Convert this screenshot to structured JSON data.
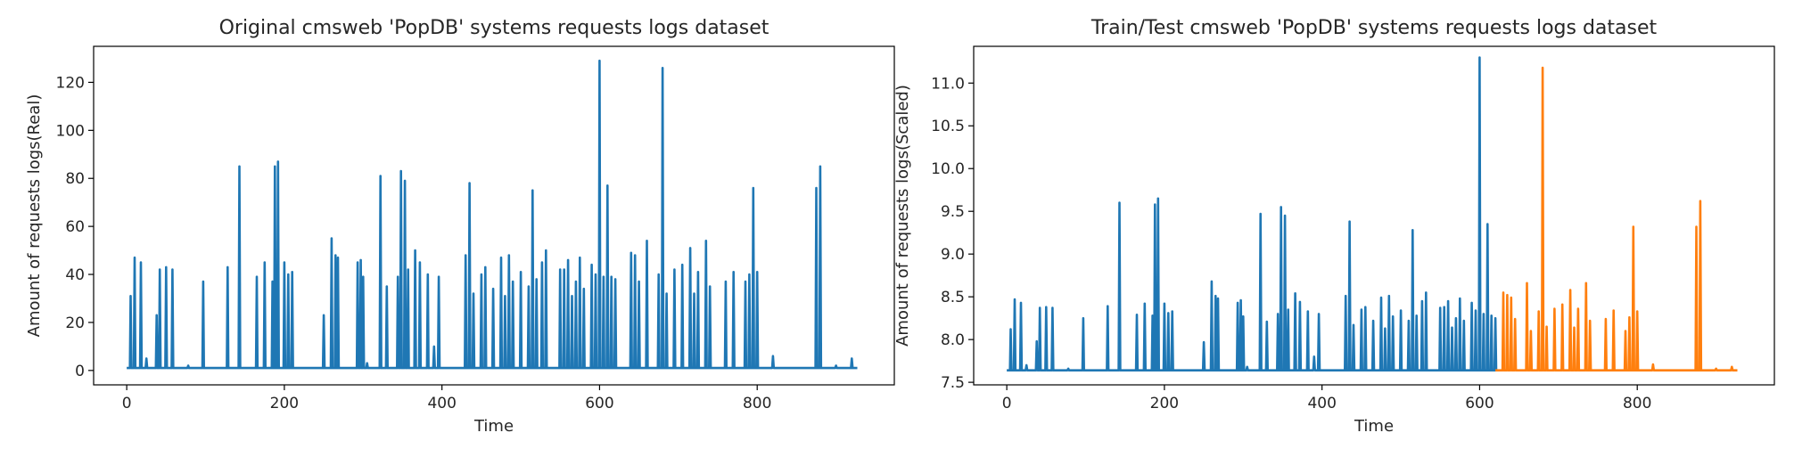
{
  "chart_data": [
    {
      "type": "line",
      "title": "Original cmsweb 'PopDB' systems requests logs dataset",
      "xlabel": "Time",
      "ylabel": "Amount of requests logs(Real)",
      "xlim": [
        -42,
        974
      ],
      "ylim": [
        -6,
        135
      ],
      "xticks": [
        0,
        200,
        400,
        600,
        800
      ],
      "yticks": [
        0,
        20,
        40,
        60,
        80,
        100,
        120
      ],
      "xtick_labels": [
        "0",
        "200",
        "400",
        "600",
        "800"
      ],
      "ytick_labels": [
        "0",
        "20",
        "40",
        "60",
        "80",
        "100",
        "120"
      ],
      "grid": false,
      "series": [
        {
          "color": "#1f77b4",
          "baseline": 1,
          "xmax": 927,
          "spikes": [
            [
              5,
              31
            ],
            [
              10,
              47
            ],
            [
              18,
              45
            ],
            [
              25,
              5
            ],
            [
              38,
              23
            ],
            [
              42,
              42
            ],
            [
              50,
              43
            ],
            [
              58,
              42
            ],
            [
              78,
              2
            ],
            [
              97,
              37
            ],
            [
              128,
              43
            ],
            [
              143,
              85
            ],
            [
              165,
              39
            ],
            [
              175,
              45
            ],
            [
              185,
              37
            ],
            [
              188,
              85
            ],
            [
              192,
              87
            ],
            [
              200,
              45
            ],
            [
              205,
              40
            ],
            [
              210,
              41
            ],
            [
              250,
              23
            ],
            [
              260,
              55
            ],
            [
              265,
              48
            ],
            [
              268,
              47
            ],
            [
              293,
              45
            ],
            [
              297,
              46
            ],
            [
              300,
              39
            ],
            [
              305,
              3
            ],
            [
              322,
              81
            ],
            [
              330,
              35
            ],
            [
              344,
              39
            ],
            [
              348,
              83
            ],
            [
              353,
              79
            ],
            [
              357,
              42
            ],
            [
              366,
              50
            ],
            [
              372,
              45
            ],
            [
              382,
              40
            ],
            [
              390,
              10
            ],
            [
              396,
              39
            ],
            [
              430,
              48
            ],
            [
              435,
              78
            ],
            [
              440,
              32
            ],
            [
              450,
              40
            ],
            [
              455,
              43
            ],
            [
              465,
              34
            ],
            [
              475,
              47
            ],
            [
              480,
              31
            ],
            [
              485,
              48
            ],
            [
              490,
              37
            ],
            [
              500,
              41
            ],
            [
              510,
              35
            ],
            [
              515,
              75
            ],
            [
              520,
              38
            ],
            [
              527,
              45
            ],
            [
              532,
              50
            ],
            [
              550,
              42
            ],
            [
              555,
              42
            ],
            [
              560,
              46
            ],
            [
              565,
              31
            ],
            [
              570,
              37
            ],
            [
              575,
              47
            ],
            [
              580,
              34
            ],
            [
              590,
              44
            ],
            [
              595,
              40
            ],
            [
              600,
              129
            ],
            [
              605,
              39
            ],
            [
              610,
              77
            ],
            [
              615,
              39
            ],
            [
              620,
              38
            ],
            [
              640,
              49
            ],
            [
              645,
              48
            ],
            [
              650,
              37
            ],
            [
              660,
              54
            ],
            [
              675,
              40
            ],
            [
              680,
              126
            ],
            [
              685,
              32
            ],
            [
              695,
              42
            ],
            [
              705,
              44
            ],
            [
              715,
              51
            ],
            [
              720,
              32
            ],
            [
              725,
              41
            ],
            [
              735,
              54
            ],
            [
              740,
              35
            ],
            [
              760,
              37
            ],
            [
              770,
              41
            ],
            [
              785,
              37
            ],
            [
              790,
              40
            ],
            [
              795,
              76
            ],
            [
              800,
              41
            ],
            [
              820,
              6
            ],
            [
              875,
              76
            ],
            [
              880,
              85
            ],
            [
              900,
              2
            ],
            [
              920,
              5
            ]
          ]
        }
      ]
    },
    {
      "type": "line",
      "title": "Train/Test cmsweb 'PopDB' systems requests logs dataset",
      "xlabel": "Time",
      "ylabel": "Amount of requests logs(Scaled)",
      "xlim": [
        -42,
        974
      ],
      "ylim": [
        7.47,
        11.43
      ],
      "xticks": [
        0,
        200,
        400,
        600,
        800
      ],
      "yticks": [
        7.5,
        8.0,
        8.5,
        9.0,
        9.5,
        10.0,
        10.5,
        11.0
      ],
      "xtick_labels": [
        "0",
        "200",
        "400",
        "600",
        "800"
      ],
      "ytick_labels": [
        "7.5",
        "8.0",
        "8.5",
        "9.0",
        "9.5",
        "10.0",
        "10.5",
        "11.0"
      ],
      "grid": false,
      "series": [
        {
          "color": "#1f77b4",
          "baseline": 7.64,
          "xmin": 0,
          "xmax": 620,
          "spikes": [
            [
              5,
              8.12
            ],
            [
              10,
              8.47
            ],
            [
              18,
              8.43
            ],
            [
              25,
              7.7
            ],
            [
              38,
              7.98
            ],
            [
              42,
              8.37
            ],
            [
              50,
              8.38
            ],
            [
              58,
              8.37
            ],
            [
              78,
              7.66
            ],
            [
              97,
              8.25
            ],
            [
              128,
              8.39
            ],
            [
              143,
              9.6
            ],
            [
              165,
              8.29
            ],
            [
              175,
              8.42
            ],
            [
              185,
              8.28
            ],
            [
              188,
              9.58
            ],
            [
              192,
              9.65
            ],
            [
              200,
              8.42
            ],
            [
              205,
              8.31
            ],
            [
              210,
              8.33
            ],
            [
              250,
              7.97
            ],
            [
              260,
              8.68
            ],
            [
              265,
              8.51
            ],
            [
              268,
              8.48
            ],
            [
              293,
              8.43
            ],
            [
              297,
              8.46
            ],
            [
              300,
              8.27
            ],
            [
              305,
              7.68
            ],
            [
              322,
              9.47
            ],
            [
              330,
              8.21
            ],
            [
              344,
              8.3
            ],
            [
              348,
              9.55
            ],
            [
              353,
              9.45
            ],
            [
              357,
              8.35
            ],
            [
              366,
              8.54
            ],
            [
              372,
              8.44
            ],
            [
              382,
              8.33
            ],
            [
              390,
              7.8
            ],
            [
              396,
              8.3
            ],
            [
              430,
              8.51
            ],
            [
              435,
              9.38
            ],
            [
              440,
              8.17
            ],
            [
              450,
              8.35
            ],
            [
              455,
              8.38
            ],
            [
              465,
              8.22
            ],
            [
              475,
              8.49
            ],
            [
              480,
              8.13
            ],
            [
              485,
              8.51
            ],
            [
              490,
              8.27
            ],
            [
              500,
              8.34
            ],
            [
              510,
              8.22
            ],
            [
              515,
              9.28
            ],
            [
              520,
              8.28
            ],
            [
              527,
              8.45
            ],
            [
              532,
              8.55
            ],
            [
              550,
              8.37
            ],
            [
              555,
              8.38
            ],
            [
              560,
              8.45
            ],
            [
              565,
              8.14
            ],
            [
              570,
              8.25
            ],
            [
              575,
              8.48
            ],
            [
              580,
              8.22
            ],
            [
              590,
              8.43
            ],
            [
              595,
              8.34
            ],
            [
              600,
              11.3
            ],
            [
              605,
              8.3
            ],
            [
              610,
              9.35
            ],
            [
              615,
              8.28
            ],
            [
              620,
              8.25
            ]
          ]
        },
        {
          "color": "#ff7f0e",
          "baseline": 7.64,
          "xmin": 620,
          "xmax": 927,
          "spikes": [
            [
              630,
              8.55
            ],
            [
              635,
              8.52
            ],
            [
              640,
              8.49
            ],
            [
              645,
              8.24
            ],
            [
              660,
              8.66
            ],
            [
              665,
              8.1
            ],
            [
              675,
              8.33
            ],
            [
              680,
              11.18
            ],
            [
              685,
              8.15
            ],
            [
              695,
              8.36
            ],
            [
              705,
              8.41
            ],
            [
              715,
              8.58
            ],
            [
              720,
              8.14
            ],
            [
              725,
              8.36
            ],
            [
              735,
              8.66
            ],
            [
              740,
              8.22
            ],
            [
              760,
              8.24
            ],
            [
              770,
              8.34
            ],
            [
              785,
              8.1
            ],
            [
              790,
              8.26
            ],
            [
              795,
              9.32
            ],
            [
              800,
              8.33
            ],
            [
              820,
              7.71
            ],
            [
              875,
              9.32
            ],
            [
              880,
              9.62
            ],
            [
              900,
              7.66
            ],
            [
              920,
              7.68
            ]
          ]
        }
      ]
    }
  ]
}
